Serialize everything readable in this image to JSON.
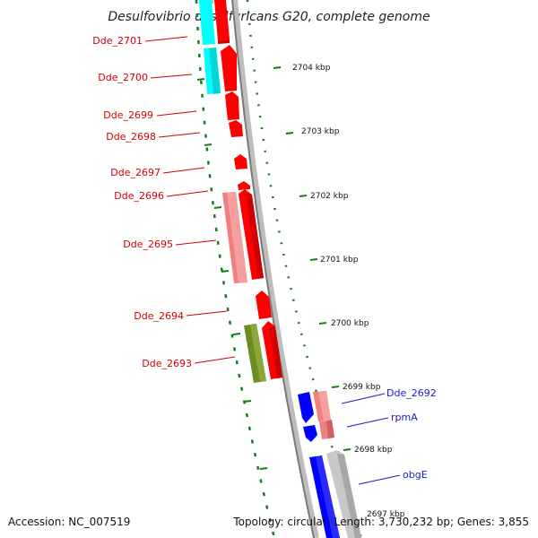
{
  "title": "Desulfovibrio desulfuricans G20, complete genome",
  "footer": {
    "accession": "Accession: NC_007519",
    "topology": "Topology: circular; Length: 3,730,232 bp; Genes: 3,855"
  },
  "colors": {
    "red": "#ff0000",
    "pink": "#f08080",
    "cyan": "#00ffff",
    "olive": "#6b8e23",
    "blue": "#0000ff",
    "gray": "#c8c8c8",
    "tick_green": "#1a7a1a",
    "label_red": "#d40000",
    "label_blue": "#1a1acc",
    "backbone": "#8a8a8a"
  },
  "kbp_labels": [
    {
      "text": "2704 kbp"
    },
    {
      "text": "2703 kbp"
    },
    {
      "text": "2702 kbp"
    },
    {
      "text": "2701 kbp"
    },
    {
      "text": "2700 kbp"
    },
    {
      "text": "2699 kbp"
    },
    {
      "text": "2698 kbp"
    },
    {
      "text": "2697 kbp"
    }
  ],
  "genes_left": [
    {
      "name": "Dde_2701"
    },
    {
      "name": "Dde_2700"
    },
    {
      "name": "Dde_2699"
    },
    {
      "name": "Dde_2698"
    },
    {
      "name": "Dde_2697"
    },
    {
      "name": "Dde_2696"
    },
    {
      "name": "Dde_2695"
    },
    {
      "name": "Dde_2694"
    },
    {
      "name": "Dde_2693"
    }
  ],
  "genes_right": [
    {
      "name": "Dde_2692"
    },
    {
      "name": "rpmA"
    },
    {
      "name": "obgE"
    }
  ]
}
